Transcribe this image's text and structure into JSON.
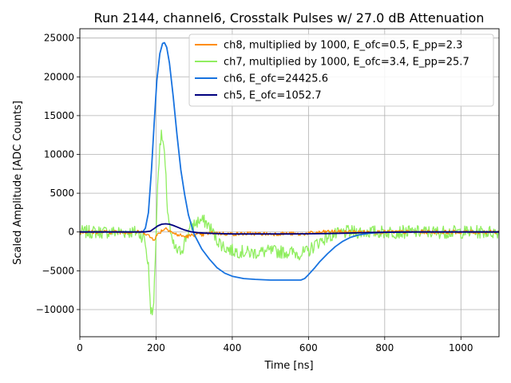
{
  "chart_data": {
    "type": "line",
    "title": "Run 2144, channel6, Crosstalk Pulses w/ 27.0 dB Attenuation",
    "xlabel": "Time [ns]",
    "ylabel": "Scaled Amplitude [ADC Counts]",
    "xlim": [
      0,
      1100
    ],
    "ylim": [
      -13500,
      26200
    ],
    "xticks": [
      0,
      200,
      400,
      600,
      800,
      1000
    ],
    "xtick_labels": [
      "0",
      "200",
      "400",
      "600",
      "800",
      "1000"
    ],
    "yticks": [
      -10000,
      -5000,
      0,
      5000,
      10000,
      15000,
      20000,
      25000
    ],
    "ytick_labels": [
      "−10000",
      "−5000",
      "0",
      "5000",
      "10000",
      "15000",
      "20000",
      "25000"
    ],
    "grid": true,
    "legend_position": "top-right",
    "series": [
      {
        "name": "ch8, multiplied by 1000,  E_ofc=0.5, E_pp=2.3",
        "color": "#ff8c00",
        "x": [
          0,
          150,
          170,
          185,
          195,
          205,
          215,
          225,
          235,
          245,
          260,
          275,
          290,
          305,
          320,
          335,
          350,
          375,
          400,
          450,
          500,
          550,
          575,
          600,
          625,
          650,
          700,
          750,
          800,
          900,
          1000,
          1100
        ],
        "values": [
          0,
          0,
          -50,
          -700,
          -900,
          -300,
          200,
          500,
          300,
          -200,
          -400,
          -600,
          -500,
          -300,
          -400,
          -200,
          -100,
          -200,
          -250,
          -200,
          -250,
          -200,
          -300,
          -150,
          -100,
          50,
          0,
          0,
          0,
          0,
          0,
          0
        ],
        "noise": 250
      },
      {
        "name": "ch7, multiplied by 1000,  E_ofc=3.4, E_pp=25.7",
        "color": "#90ee60",
        "x": [
          0,
          150,
          170,
          180,
          185,
          190,
          195,
          200,
          205,
          210,
          215,
          220,
          225,
          230,
          240,
          250,
          260,
          270,
          280,
          290,
          300,
          315,
          330,
          345,
          360,
          380,
          400,
          450,
          500,
          550,
          580,
          600,
          620,
          650,
          700,
          750,
          800,
          900,
          1000,
          1100
        ],
        "values": [
          0,
          0,
          -800,
          -4500,
          -9500,
          -11000,
          -8000,
          0,
          7000,
          11500,
          12500,
          11000,
          7500,
          3000,
          -1000,
          -2200,
          -2600,
          -2000,
          -500,
          500,
          1000,
          1500,
          1300,
          300,
          -1000,
          -2000,
          -2400,
          -2700,
          -2500,
          -2600,
          -2800,
          -2500,
          -1500,
          -600,
          0,
          0,
          0,
          0,
          0,
          0
        ],
        "noise": 850
      },
      {
        "name": "ch6,  E_ofc=24425.6",
        "color": "#1873e0",
        "x": [
          0,
          165,
          172,
          180,
          188,
          195,
          202,
          210,
          217,
          222,
          228,
          235,
          245,
          255,
          265,
          275,
          285,
          300,
          320,
          340,
          360,
          380,
          400,
          430,
          460,
          500,
          550,
          580,
          590,
          600,
          615,
          630,
          650,
          670,
          690,
          710,
          730,
          760,
          800,
          850,
          900,
          1000,
          1100
        ],
        "values": [
          0,
          0,
          500,
          2500,
          8000,
          14000,
          19500,
          23000,
          24300,
          24400,
          23800,
          21800,
          17500,
          12500,
          8000,
          4800,
          2200,
          -300,
          -2200,
          -3500,
          -4600,
          -5300,
          -5700,
          -6000,
          -6100,
          -6200,
          -6200,
          -6200,
          -6000,
          -5500,
          -4700,
          -3800,
          -2800,
          -1900,
          -1200,
          -700,
          -400,
          -150,
          -50,
          0,
          0,
          0,
          0
        ],
        "noise": 0
      },
      {
        "name": "ch5,  E_ofc=1052.7",
        "color": "#00007f",
        "x": [
          0,
          170,
          185,
          195,
          205,
          215,
          225,
          235,
          245,
          255,
          265,
          275,
          290,
          310,
          330,
          360,
          400,
          450,
          500,
          550,
          600,
          650,
          700,
          750,
          800,
          900,
          1000,
          1100
        ],
        "values": [
          0,
          0,
          120,
          450,
          800,
          1000,
          1050,
          1000,
          850,
          650,
          450,
          250,
          50,
          -100,
          -150,
          -200,
          -250,
          -250,
          -250,
          -250,
          -230,
          -200,
          -150,
          -80,
          -30,
          0,
          0,
          0
        ],
        "noise": 0
      }
    ]
  }
}
